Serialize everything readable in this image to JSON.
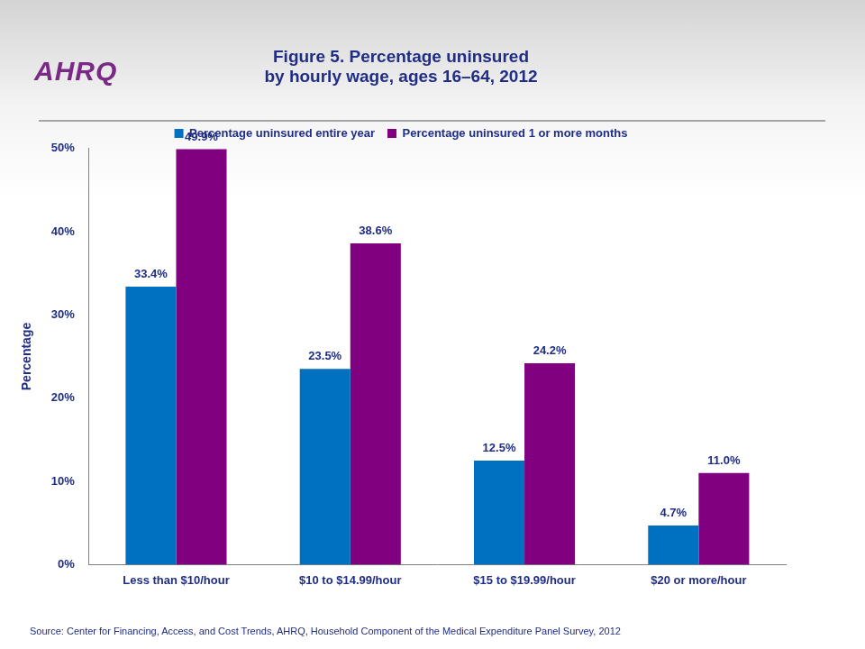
{
  "chart_data": {
    "type": "bar",
    "title": [
      "Figure 5. Percentage uninsured",
      "by hourly wage, ages 16–64, 2012"
    ],
    "y_label": "Percentage",
    "categories": [
      "Less than $10/hour",
      "$10 to $14.99/hour",
      "$15 to $19.99/hour",
      "$20 or more/hour"
    ],
    "series": [
      {
        "name": "Percentage uninsured entire year",
        "color": "#0070c0",
        "values": [
          33.4,
          23.5,
          12.5,
          4.7
        ],
        "value_labels": [
          "33.4%",
          "23.5%",
          "12.5%",
          "4.7%"
        ]
      },
      {
        "name": "Percentage uninsured 1 or more months",
        "color": "#800080",
        "values": [
          49.9,
          38.6,
          24.2,
          11.0
        ],
        "value_labels": [
          "49.9%",
          "38.6%",
          "24.2%",
          "11.0%"
        ]
      }
    ],
    "ylim": [
      0,
      50
    ],
    "yticks": [
      {
        "value": 0,
        "label": "0%"
      },
      {
        "value": 10,
        "label": "10%"
      },
      {
        "value": 20,
        "label": "20%"
      },
      {
        "value": 30,
        "label": "30%"
      },
      {
        "value": 40,
        "label": "40%"
      },
      {
        "value": 50,
        "label": "50%"
      }
    ],
    "grid": false,
    "legend": "top",
    "data_labels": true,
    "annotations": [
      "Source: Center for Financing, Access, and Cost Trends, AHRQ, Household Component of the Medical Expenditure Panel Survey, 2012"
    ],
    "logo": "AHRQ"
  }
}
